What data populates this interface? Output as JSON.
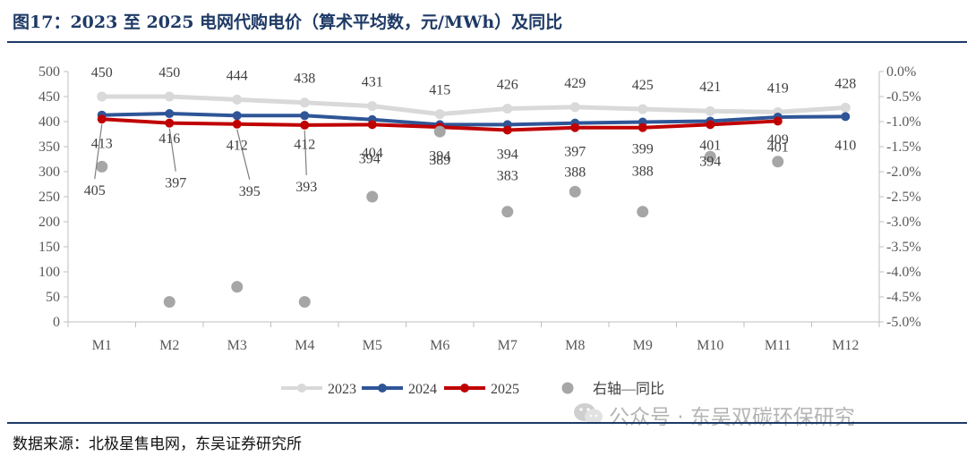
{
  "header": {
    "title": "图17：2023 至 2025 电网代购电价（算术平均数，元/MWh）及同比"
  },
  "footer": {
    "source": "数据来源：北极星售电网，东吴证券研究所",
    "watermark": "公众号 · 东吴双碳环保研究"
  },
  "colors": {
    "s2023": "#d9d9d9",
    "s2024": "#2f5597",
    "s2025": "#c00000",
    "yoy": "#a6a6a6",
    "rule": "#1e3a66"
  },
  "chart_data": {
    "type": "line",
    "categories": [
      "M1",
      "M2",
      "M3",
      "M4",
      "M5",
      "M6",
      "M7",
      "M8",
      "M9",
      "M10",
      "M11",
      "M12"
    ],
    "series": [
      {
        "name": "2023",
        "axis": "left",
        "values": [
          450,
          450,
          444,
          438,
          431,
          415,
          426,
          429,
          425,
          421,
          419,
          428
        ]
      },
      {
        "name": "2024",
        "axis": "left",
        "values": [
          413,
          416,
          412,
          412,
          404,
          394,
          394,
          397,
          399,
          401,
          409,
          410
        ]
      },
      {
        "name": "2025",
        "axis": "left",
        "values": [
          405,
          397,
          395,
          393,
          394,
          389,
          383,
          388,
          388,
          394,
          401,
          null
        ]
      },
      {
        "name": "右轴—同比",
        "axis": "right",
        "type": "scatter",
        "values": [
          -1.9,
          -4.6,
          -4.3,
          -4.6,
          -2.5,
          -1.2,
          -2.8,
          -2.4,
          -2.8,
          -1.7,
          -1.8,
          null
        ]
      }
    ],
    "y_left": {
      "ylim": [
        0,
        500
      ],
      "ticks": [
        "0",
        "50",
        "100",
        "150",
        "200",
        "250",
        "300",
        "350",
        "400",
        "450",
        "500"
      ]
    },
    "y_right": {
      "ylim": [
        -5.0,
        0.0
      ],
      "ticks": [
        "0.0%",
        "-0.5%",
        "-1.0%",
        "-1.5%",
        "-2.0%",
        "-2.5%",
        "-3.0%",
        "-3.5%",
        "-4.0%",
        "-4.5%",
        "-5.0%"
      ]
    },
    "legend": {
      "position": "bottom",
      "entries": [
        "2023",
        "2024",
        "2025",
        "右轴—同比"
      ]
    }
  }
}
